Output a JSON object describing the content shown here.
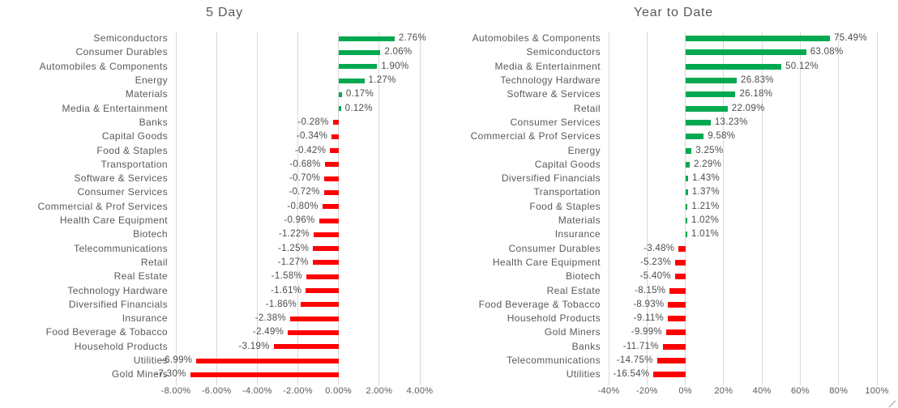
{
  "chart_data": [
    {
      "type": "bar",
      "orientation": "horizontal",
      "title": "5 Day",
      "legend_position": "none",
      "grid": true,
      "colors": {
        "positive": "#00a94f",
        "negative": "#fe0000"
      },
      "categories": [
        "Semiconductors",
        "Consumer Durables",
        "Automobiles & Components",
        "Energy",
        "Materials",
        "Media & Entertainment",
        "Banks",
        "Capital Goods",
        "Food & Staples",
        "Transportation",
        "Software & Services",
        "Consumer Services",
        "Commercial & Prof Services",
        "Health Care Equipment",
        "Biotech",
        "Telecommunications",
        "Retail",
        "Real Estate",
        "Technology Hardware",
        "Diversified Financials",
        "Insurance",
        "Food Beverage & Tobacco",
        "Household Products",
        "Utilities",
        "Gold Miners"
      ],
      "values": [
        2.76,
        2.06,
        1.9,
        1.27,
        0.17,
        0.12,
        -0.28,
        -0.34,
        -0.42,
        -0.68,
        -0.7,
        -0.72,
        -0.8,
        -0.96,
        -1.22,
        -1.25,
        -1.27,
        -1.58,
        -1.61,
        -1.86,
        -2.38,
        -2.49,
        -3.19,
        -6.99,
        -7.3
      ],
      "value_labels": [
        "2.76%",
        "2.06%",
        "1.90%",
        "1.27%",
        "0.17%",
        "0.12%",
        "-0.28%",
        "-0.34%",
        "-0.42%",
        "-0.68%",
        "-0.70%",
        "-0.72%",
        "-0.80%",
        "-0.96%",
        "-1.22%",
        "-1.25%",
        "-1.27%",
        "-1.58%",
        "-1.61%",
        "-1.86%",
        "-2.38%",
        "-2.49%",
        "-3.19%",
        "-6.99%",
        "-7.30%"
      ],
      "x_axis": {
        "min": -8,
        "max": 4,
        "ticks": [
          {
            "value": -8,
            "label": "-8.00%"
          },
          {
            "value": -6,
            "label": "-6.00%"
          },
          {
            "value": -4,
            "label": "-4.00%"
          },
          {
            "value": -2,
            "label": "-2.00%"
          },
          {
            "value": 0,
            "label": "0.00%"
          },
          {
            "value": 2,
            "label": "2.00%"
          },
          {
            "value": 4,
            "label": "4.00%"
          }
        ]
      }
    },
    {
      "type": "bar",
      "orientation": "horizontal",
      "title": "Year to Date",
      "legend_position": "none",
      "grid": true,
      "colors": {
        "positive": "#00a94f",
        "negative": "#fe0000"
      },
      "categories": [
        "Automobiles & Components",
        "Semiconductors",
        "Media & Entertainment",
        "Technology Hardware",
        "Software & Services",
        "Retail",
        "Consumer Services",
        "Commercial & Prof Services",
        "Energy",
        "Capital Goods",
        "Diversified Financials",
        "Transportation",
        "Food & Staples",
        "Materials",
        "Insurance",
        "Consumer Durables",
        "Health Care Equipment",
        "Biotech",
        "Real Estate",
        "Food Beverage & Tobacco",
        "Household Products",
        "Gold Miners",
        "Banks",
        "Telecommunications",
        "Utilities"
      ],
      "values": [
        75.49,
        63.08,
        50.12,
        26.83,
        26.18,
        22.09,
        13.23,
        9.58,
        3.25,
        2.29,
        1.43,
        1.37,
        1.21,
        1.02,
        1.01,
        -3.48,
        -5.23,
        -5.4,
        -8.15,
        -8.93,
        -9.11,
        -9.99,
        -11.71,
        -14.75,
        -16.54
      ],
      "value_labels": [
        "75.49%",
        "63.08%",
        "50.12%",
        "26.83%",
        "26.18%",
        "22.09%",
        "13.23%",
        "9.58%",
        "3.25%",
        "2.29%",
        "1.43%",
        "1.37%",
        "1.21%",
        "1.02%",
        "1.01%",
        "-3.48%",
        "-5.23%",
        "-5.40%",
        "-8.15%",
        "-8.93%",
        "-9.11%",
        "-9.99%",
        "-11.71%",
        "-14.75%",
        "-16.54%"
      ],
      "x_axis": {
        "min": -40,
        "max": 100,
        "ticks": [
          {
            "value": -40,
            "label": "-40%"
          },
          {
            "value": -20,
            "label": "-20%"
          },
          {
            "value": 0,
            "label": "0%"
          },
          {
            "value": 20,
            "label": "20%"
          },
          {
            "value": 40,
            "label": "40%"
          },
          {
            "value": 60,
            "label": "60%"
          },
          {
            "value": 80,
            "label": "80%"
          },
          {
            "value": 100,
            "label": "100%"
          }
        ]
      }
    }
  ]
}
